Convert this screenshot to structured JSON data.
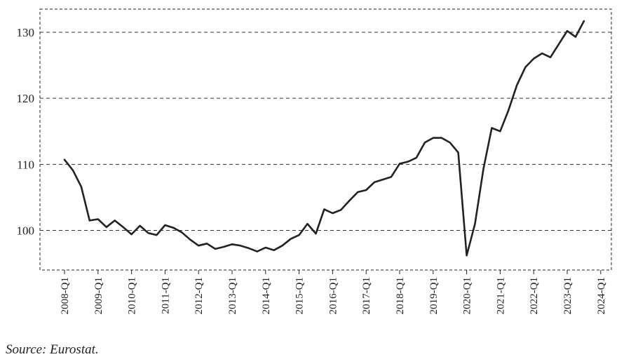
{
  "source_note": "Source: Eurostat.",
  "chart_data": {
    "type": "line",
    "title": "",
    "xlabel": "",
    "ylabel": "",
    "ylim": [
      94,
      133.5
    ],
    "yticks": [
      100,
      110,
      120,
      130
    ],
    "grid": "horizontal dashed",
    "line_color": "#222222",
    "xtick_labels": [
      "2008-Q1",
      "2009-Q1",
      "2010-Q1",
      "2011-Q1",
      "2012-Q1",
      "2013-Q1",
      "2014-Q1",
      "2015-Q1",
      "2016-Q1",
      "2017-Q1",
      "2018-Q1",
      "2019-Q1",
      "2020-Q1",
      "2021-Q1",
      "2022-Q1",
      "2023-Q1",
      "2024-Q1"
    ],
    "series": [
      {
        "x": [
          "2008-Q1",
          "2008-Q2",
          "2008-Q3",
          "2008-Q4",
          "2009-Q1",
          "2009-Q2",
          "2009-Q3",
          "2009-Q4",
          "2010-Q1",
          "2010-Q2",
          "2010-Q3",
          "2010-Q4",
          "2011-Q1",
          "2011-Q2",
          "2011-Q3",
          "2011-Q4",
          "2012-Q1",
          "2012-Q2",
          "2012-Q3",
          "2012-Q4",
          "2013-Q1",
          "2013-Q2",
          "2013-Q3",
          "2013-Q4",
          "2014-Q1",
          "2014-Q2",
          "2014-Q3",
          "2014-Q4",
          "2015-Q1",
          "2015-Q2",
          "2015-Q3",
          "2015-Q4",
          "2016-Q1",
          "2016-Q2",
          "2016-Q3",
          "2016-Q4",
          "2017-Q1",
          "2017-Q2",
          "2017-Q3",
          "2017-Q4",
          "2018-Q1",
          "2018-Q2",
          "2018-Q3",
          "2018-Q4",
          "2019-Q1",
          "2019-Q2",
          "2019-Q3",
          "2019-Q4",
          "2020-Q1",
          "2020-Q2",
          "2020-Q3",
          "2020-Q4",
          "2021-Q1",
          "2021-Q2",
          "2021-Q3",
          "2021-Q4",
          "2022-Q1",
          "2022-Q2",
          "2022-Q3",
          "2022-Q4",
          "2023-Q1",
          "2023-Q2",
          "2023-Q3",
          "2023-Q4"
        ],
        "values": [
          110.7,
          109.1,
          106.6,
          101.5,
          101.7,
          100.5,
          101.5,
          100.5,
          99.4,
          100.7,
          99.6,
          99.3,
          100.8,
          100.4,
          99.7,
          98.6,
          97.7,
          98.0,
          97.2,
          97.5,
          97.9,
          97.7,
          97.3,
          96.8,
          97.4,
          97.0,
          97.7,
          98.7,
          99.3,
          101.0,
          99.5,
          103.2,
          102.6,
          103.1,
          104.5,
          105.8,
          106.1,
          107.3,
          107.7,
          108.1,
          110.1,
          110.4,
          111.0,
          113.3,
          114.0,
          114.0,
          113.3,
          111.8,
          96.2,
          101.0,
          109.3,
          115.5,
          115.0,
          118.2,
          122.0,
          124.7,
          126.0,
          126.8,
          126.2,
          128.2,
          130.2,
          129.3,
          131.7,
          null
        ]
      }
    ]
  }
}
